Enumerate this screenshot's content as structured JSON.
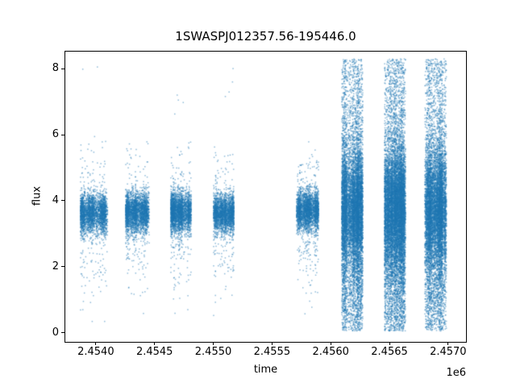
{
  "chart_data": {
    "type": "scatter",
    "title": "1SWASPJ012357.56-195446.0",
    "xlabel": "time",
    "ylabel": "flux",
    "x_offset_label": "1e6",
    "xlim": [
      2453740,
      2457152
    ],
    "ylim": [
      -0.28,
      8.52
    ],
    "xticks": {
      "values": [
        2454000,
        2454500,
        2455000,
        2455500,
        2456000,
        2456500,
        2457000
      ],
      "labels": [
        "2.4540",
        "2.4545",
        "2.4550",
        "2.4555",
        "2.4560",
        "2.4565",
        "2.4570"
      ]
    },
    "yticks": {
      "values": [
        0,
        2,
        4,
        6,
        8
      ],
      "labels": [
        "0",
        "2",
        "4",
        "6",
        "8"
      ]
    },
    "grid": false,
    "legend": null,
    "point_color": "#1f77b4",
    "point_alpha": 0.5,
    "marker_size_px": 1.5,
    "axes_edge_color": "#000000",
    "background_color": "#ffffff",
    "clusters": [
      {
        "t_start": 2453870,
        "t_end": 2454100,
        "n_cols": 14,
        "components": [
          {
            "n": 2600,
            "dist": "normal",
            "mean": 3.62,
            "sigma": 0.3,
            "clip": [
              2.7,
              4.45
            ]
          },
          {
            "n": 300,
            "dist": "normal",
            "mean": 3.5,
            "sigma": 1.05,
            "clip": [
              0.9,
              6.0
            ]
          },
          {
            "n": 10,
            "dist": "uniform",
            "lo": 0.15,
            "hi": 2.2
          },
          {
            "n": 2,
            "dist": "uniform",
            "lo": 7.9,
            "hi": 8.2
          }
        ]
      },
      {
        "t_start": 2454255,
        "t_end": 2454454,
        "n_cols": 13,
        "components": [
          {
            "n": 2600,
            "dist": "normal",
            "mean": 3.65,
            "sigma": 0.3,
            "clip": [
              2.7,
              4.45
            ]
          },
          {
            "n": 300,
            "dist": "normal",
            "mean": 3.5,
            "sigma": 1.0,
            "clip": [
              0.9,
              5.8
            ]
          },
          {
            "n": 9,
            "dist": "uniform",
            "lo": 0.5,
            "hi": 2.4
          }
        ]
      },
      {
        "t_start": 2454639,
        "t_end": 2454811,
        "n_cols": 12,
        "components": [
          {
            "n": 2600,
            "dist": "normal",
            "mean": 3.65,
            "sigma": 0.3,
            "clip": [
              2.7,
              4.5
            ]
          },
          {
            "n": 300,
            "dist": "normal",
            "mean": 3.55,
            "sigma": 1.0,
            "clip": [
              1.0,
              6.0
            ]
          },
          {
            "n": 8,
            "dist": "uniform",
            "lo": 0.3,
            "hi": 2.2
          },
          {
            "n": 4,
            "dist": "uniform",
            "lo": 6.4,
            "hi": 7.7
          }
        ]
      },
      {
        "t_start": 2455003,
        "t_end": 2455175,
        "n_cols": 11,
        "components": [
          {
            "n": 2300,
            "dist": "normal",
            "mean": 3.62,
            "sigma": 0.28,
            "clip": [
              2.8,
              4.4
            ]
          },
          {
            "n": 260,
            "dist": "normal",
            "mean": 3.5,
            "sigma": 1.0,
            "clip": [
              1.0,
              5.8
            ]
          },
          {
            "n": 8,
            "dist": "uniform",
            "lo": 0.4,
            "hi": 2.3
          },
          {
            "n": 4,
            "dist": "uniform",
            "lo": 6.6,
            "hi": 8.25
          }
        ]
      },
      {
        "t_start": 2455710,
        "t_end": 2455896,
        "n_cols": 12,
        "components": [
          {
            "n": 2500,
            "dist": "normal",
            "mean": 3.7,
            "sigma": 0.3,
            "clip": [
              2.9,
              4.5
            ]
          },
          {
            "n": 330,
            "dist": "normal",
            "mean": 3.6,
            "sigma": 1.0,
            "clip": [
              0.3,
              5.8
            ]
          },
          {
            "n": 8,
            "dist": "uniform",
            "lo": 0.25,
            "hi": 2.0
          }
        ]
      },
      {
        "t_start": 2456095,
        "t_end": 2456273,
        "n_cols": 22,
        "components": [
          {
            "n": 5200,
            "dist": "normal",
            "mean": 3.8,
            "sigma": 0.8,
            "clip": [
              0.3,
              6.0
            ]
          },
          {
            "n": 2600,
            "dist": "normal",
            "mean": 2.8,
            "sigma": 1.7,
            "clip": [
              0.05,
              7.5
            ]
          },
          {
            "n": 2200,
            "dist": "uniform",
            "lo": 0.05,
            "hi": 8.3
          }
        ]
      },
      {
        "t_start": 2456459,
        "t_end": 2456637,
        "n_cols": 24,
        "components": [
          {
            "n": 5800,
            "dist": "normal",
            "mean": 3.8,
            "sigma": 0.85,
            "clip": [
              0.3,
              6.2
            ]
          },
          {
            "n": 2900,
            "dist": "normal",
            "mean": 2.8,
            "sigma": 1.7,
            "clip": [
              0.05,
              7.6
            ]
          },
          {
            "n": 2500,
            "dist": "uniform",
            "lo": 0.05,
            "hi": 8.3
          }
        ]
      },
      {
        "t_start": 2456802,
        "t_end": 2456985,
        "n_cols": 22,
        "components": [
          {
            "n": 4700,
            "dist": "normal",
            "mean": 3.8,
            "sigma": 0.85,
            "clip": [
              0.3,
              6.0
            ]
          },
          {
            "n": 2400,
            "dist": "normal",
            "mean": 2.9,
            "sigma": 1.7,
            "clip": [
              0.05,
              7.5
            ]
          },
          {
            "n": 2100,
            "dist": "uniform",
            "lo": 0.05,
            "hi": 8.3
          }
        ]
      }
    ]
  }
}
